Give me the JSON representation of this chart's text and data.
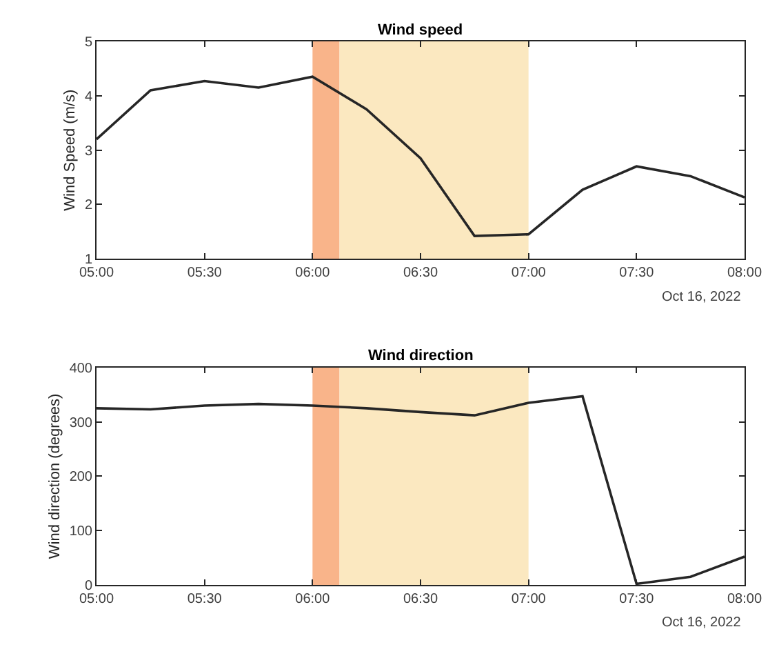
{
  "chart_data": [
    {
      "type": "line",
      "title": "Wind speed",
      "ylabel": "Wind Speed (m/s)",
      "x": [
        5,
        5.25,
        5.5,
        5.75,
        6,
        6.25,
        6.5,
        6.75,
        7,
        7.25,
        7.5,
        7.75,
        8
      ],
      "series": [
        {
          "color": "#262626",
          "values": [
            3.2,
            4.1,
            4.27,
            4.15,
            4.35,
            3.75,
            2.85,
            1.42,
            1.45,
            2.27,
            2.7,
            2.52,
            2.13
          ]
        }
      ],
      "xlim": [
        5,
        8
      ],
      "xticks": [
        {
          "value": 5,
          "label": "05:00"
        },
        {
          "value": 5.5,
          "label": "05:30"
        },
        {
          "value": 6,
          "label": "06:00"
        },
        {
          "value": 6.5,
          "label": "06:30"
        },
        {
          "value": 7,
          "label": "07:00"
        },
        {
          "value": 7.5,
          "label": "07:30"
        },
        {
          "value": 8,
          "label": "08:00"
        }
      ],
      "ylim": [
        1,
        5
      ],
      "yticks": [
        1,
        2,
        3,
        4,
        5
      ],
      "bands": [
        {
          "axis": "x",
          "from": 6,
          "to": 6.125,
          "color": "#f9b48a"
        },
        {
          "axis": "x",
          "from": 6.125,
          "to": 7,
          "color": "#fbe8c0"
        }
      ],
      "annotations": [
        "Oct 16, 2022"
      ],
      "grid": false,
      "marker": "none",
      "line_style": "solid"
    },
    {
      "type": "line",
      "title": "Wind direction",
      "ylabel": "Wind direction (degrees)",
      "x": [
        5,
        5.25,
        5.5,
        5.75,
        6,
        6.25,
        6.5,
        6.75,
        7,
        7.25,
        7.5,
        7.75,
        8
      ],
      "series": [
        {
          "color": "#262626",
          "values": [
            325,
            323,
            330,
            333,
            330,
            325,
            318,
            312,
            335,
            347,
            2,
            15,
            52
          ]
        }
      ],
      "xlim": [
        5,
        8
      ],
      "xticks": [
        {
          "value": 5,
          "label": "05:00"
        },
        {
          "value": 5.5,
          "label": "05:30"
        },
        {
          "value": 6,
          "label": "06:00"
        },
        {
          "value": 6.5,
          "label": "06:30"
        },
        {
          "value": 7,
          "label": "07:00"
        },
        {
          "value": 7.5,
          "label": "07:30"
        },
        {
          "value": 8,
          "label": "08:00"
        }
      ],
      "ylim": [
        0,
        400
      ],
      "yticks": [
        0,
        100,
        200,
        300,
        400
      ],
      "bands": [
        {
          "axis": "x",
          "from": 6,
          "to": 6.125,
          "color": "#f9b48a"
        },
        {
          "axis": "x",
          "from": 6.125,
          "to": 7,
          "color": "#fbe8c0"
        }
      ],
      "annotations": [
        "Oct 16, 2022"
      ],
      "grid": false,
      "marker": "none",
      "line_style": "solid"
    }
  ]
}
